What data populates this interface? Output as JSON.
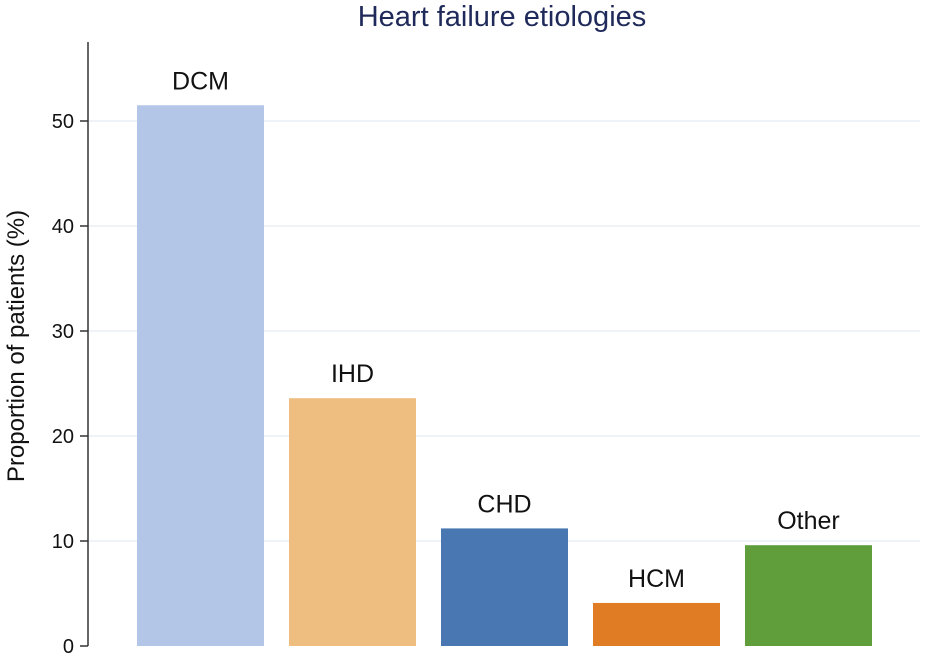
{
  "chart_data": {
    "type": "bar",
    "title": "Heart failure etiologies",
    "xlabel": "",
    "ylabel": "Proportion of patients (%)",
    "categories": [
      "DCM",
      "IHD",
      "CHD",
      "HCM",
      "Other"
    ],
    "values": [
      51.5,
      23.6,
      11.2,
      4.1,
      9.6
    ],
    "colors": [
      "#b4c6e7",
      "#eebd80",
      "#4977b2",
      "#e07c24",
      "#5f9e3a"
    ],
    "ylim": [
      0,
      60
    ],
    "yticks": [
      0,
      10,
      20,
      30,
      40,
      50
    ],
    "grid": true,
    "legend": "none"
  }
}
